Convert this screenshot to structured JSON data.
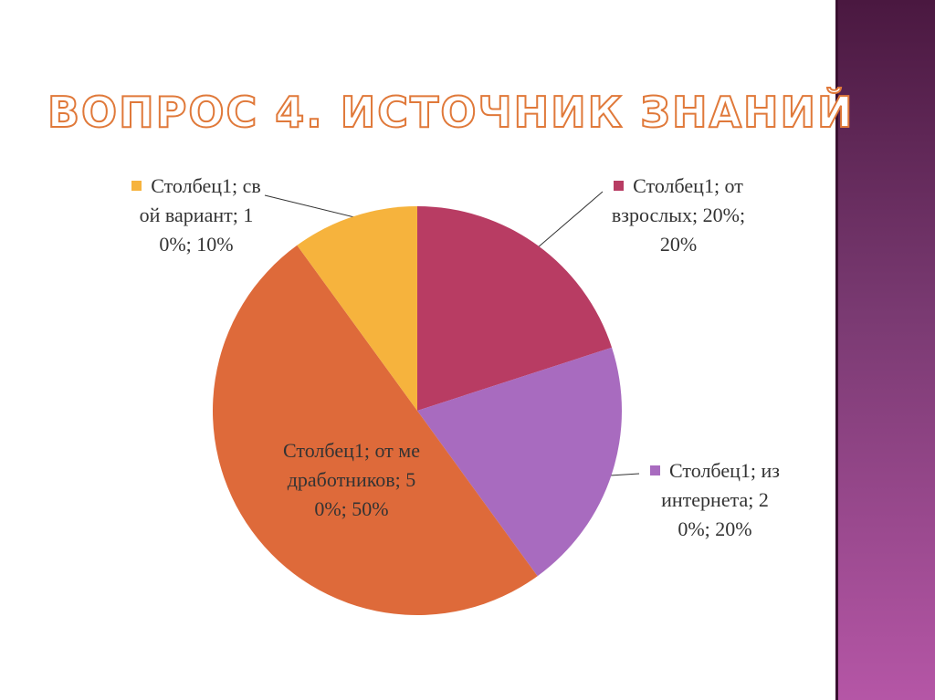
{
  "chart_data": {
    "type": "pie",
    "title": "ВОПРОС 4. ИСТОЧНИК ЗНАНИЙ",
    "values": [
      20,
      20,
      50,
      10
    ],
    "value_labels": [
      "Столбец1; от взрослых; 20%; 20%",
      "Столбец1; из интернета; 20%; 20%",
      "Столбец1; от медработников; 50%; 50%",
      "Столбец1; свой вариант; 10%; 10%"
    ],
    "colors": [
      "#b83c63",
      "#a86bbf",
      "#de6a3a",
      "#f6b33d"
    ]
  }
}
